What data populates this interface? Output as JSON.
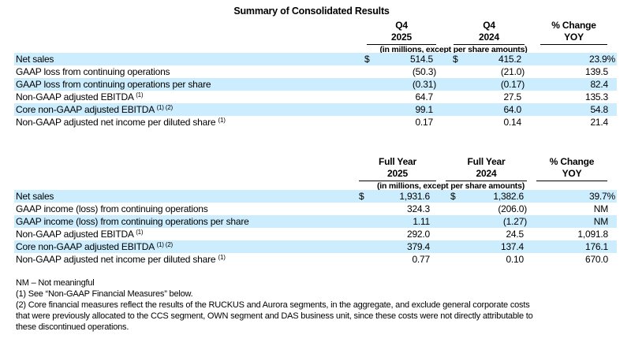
{
  "title": "Summary of Consolidated Results",
  "units_note": "(in millions, except per share amounts)",
  "highlight_color": "#ccedfd",
  "quarter_table": {
    "headers": [
      [
        "Q4",
        "2025"
      ],
      [
        "Q4",
        "2024"
      ],
      [
        "% Change",
        "YOY"
      ]
    ],
    "rows": [
      {
        "label": "Net sales",
        "sup": "",
        "c1_symbol": "$",
        "c1": "514.5",
        "c2_symbol": "$",
        "c2": "415.2",
        "c3": "23.9%"
      },
      {
        "label": "GAAP loss from continuing operations",
        "sup": "",
        "c1": "(50.3)",
        "c2": "(21.0)",
        "c3": "139.5"
      },
      {
        "label": "GAAP loss from continuing operations per share",
        "sup": "",
        "c1": "(0.31)",
        "c2": "(0.17)",
        "c3": "82.4"
      },
      {
        "label": "Non-GAAP adjusted EBITDA",
        "sup": "(1)",
        "c1": "64.7",
        "c2": "27.5",
        "c3": "135.3"
      },
      {
        "label": "Core non-GAAP adjusted EBITDA",
        "sup": "(1) (2)",
        "c1": "99.1",
        "c2": "64.0",
        "c3": "54.8"
      },
      {
        "label": "Non-GAAP adjusted net income per diluted share",
        "sup": "(1)",
        "c1": "0.17",
        "c2": "0.14",
        "c3": "21.4"
      }
    ]
  },
  "year_table": {
    "headers": [
      [
        "Full Year",
        "2025"
      ],
      [
        "Full Year",
        "2024"
      ],
      [
        "% Change",
        "YOY"
      ]
    ],
    "rows": [
      {
        "label": "Net sales",
        "sup": "",
        "c1_symbol": "$",
        "c1": "1,931.6",
        "c2_symbol": "$",
        "c2": "1,382.6",
        "c3": "39.7%"
      },
      {
        "label": "GAAP income (loss) from continuing operations",
        "sup": "",
        "c1": "324.3",
        "c2": "(206.0)",
        "c3": "NM"
      },
      {
        "label": "GAAP income (loss) from continuing operations per share",
        "sup": "",
        "c1": "1.11",
        "c2": "(1.27)",
        "c3": "NM"
      },
      {
        "label": "Non-GAAP adjusted EBITDA",
        "sup": "(1)",
        "c1": "292.0",
        "c2": "24.5",
        "c3": "1,091.8"
      },
      {
        "label": "Core non-GAAP adjusted EBITDA",
        "sup": "(1) (2)",
        "c1": "379.4",
        "c2": "137.4",
        "c3": "176.1"
      },
      {
        "label": "Non-GAAP adjusted net income per diluted share",
        "sup": "(1)",
        "c1": "0.77",
        "c2": "0.10",
        "c3": "670.0"
      }
    ]
  },
  "footnotes": [
    "NM – Not meaningful",
    "(1) See “Non-GAAP Financial Measures” below.",
    "(2) Core financial measures reflect the results of the RUCKUS and Aurora segments, in the aggregate, and exclude general corporate costs",
    "that were previously allocated to the CCS segment, OWN segment and DAS business unit, since these costs were not directly attributable to",
    "these discontinued operations."
  ]
}
